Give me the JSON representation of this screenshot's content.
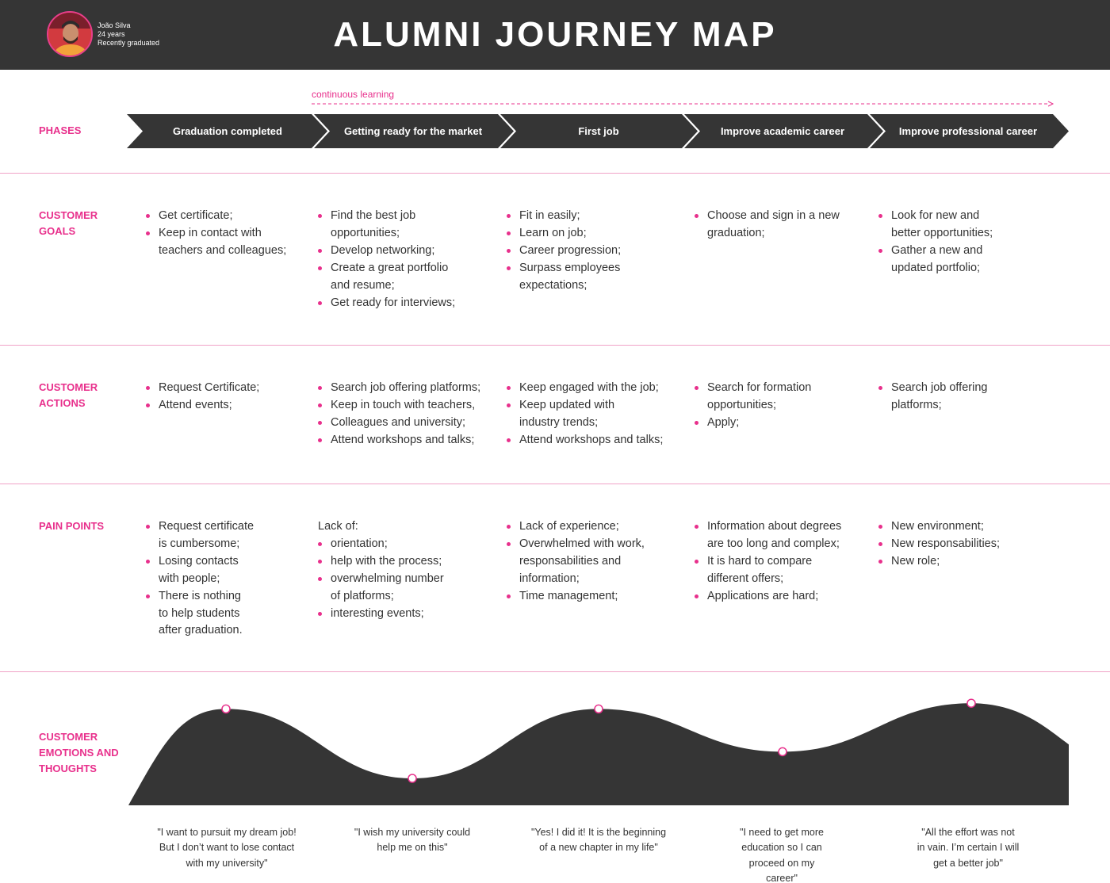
{
  "header": {
    "title": "ALUMNI JOURNEY MAP",
    "persona": {
      "name": "João Silva",
      "age": "24 years",
      "status": "Recently graduated"
    }
  },
  "colors": {
    "accent": "#e8308c",
    "dark": "#353535",
    "divider": "#f0a3c7"
  },
  "continuous_label": "continuous learning",
  "row_labels": {
    "phases": "PHASES",
    "goals": [
      "CUSTOMER",
      "GOALS"
    ],
    "actions": [
      "CUSTOMER",
      "ACTIONS"
    ],
    "pain": "PAIN POINTS",
    "emotions": [
      "CUSTOMER",
      "EMOTIONS AND",
      "THOUGHTS"
    ]
  },
  "phases": [
    "Graduation completed",
    "Getting ready for the market",
    "First job",
    "Improve academic career",
    "Improve professional career"
  ],
  "goals": [
    {
      "items": [
        [
          "Get certificate;"
        ],
        [
          "Keep in contact with",
          "teachers and colleagues;"
        ]
      ]
    },
    {
      "items": [
        [
          "Find the best job",
          "opportunities;"
        ],
        [
          "Develop networking;"
        ],
        [
          "Create a great portfolio",
          "and resume;"
        ],
        [
          "Get ready for interviews;"
        ]
      ]
    },
    {
      "items": [
        [
          "Fit in easily;"
        ],
        [
          "Learn on job;"
        ],
        [
          "Career progression;"
        ],
        [
          "Surpass employees",
          "expectations;"
        ]
      ]
    },
    {
      "items": [
        [
          "Choose and sign in a new",
          "graduation;"
        ]
      ]
    },
    {
      "items": [
        [
          "Look for new and",
          "better opportunities;"
        ],
        [
          "Gather a new and",
          "updated portfolio;"
        ]
      ]
    }
  ],
  "actions": [
    {
      "items": [
        [
          "Request Certificate;"
        ],
        [
          "Attend events;"
        ]
      ]
    },
    {
      "items": [
        [
          "Search job offering platforms;"
        ],
        [
          "Keep in touch with teachers,"
        ],
        [
          "Colleagues and university;"
        ],
        [
          "Attend workshops and talks;"
        ]
      ]
    },
    {
      "items": [
        [
          "Keep engaged with the job;"
        ],
        [
          "Keep updated with",
          "industry trends;"
        ],
        [
          "Attend workshops and talks;"
        ]
      ]
    },
    {
      "items": [
        [
          "Search for formation",
          "opportunities;"
        ],
        [
          "Apply;"
        ]
      ]
    },
    {
      "items": [
        [
          "Search job offering",
          "platforms;"
        ]
      ]
    }
  ],
  "pain_points": [
    {
      "items": [
        [
          "Request certificate",
          "is cumbersome;"
        ],
        [
          "Losing contacts",
          "with people;"
        ],
        [
          "There is nothing",
          "to help students",
          "after graduation."
        ]
      ]
    },
    {
      "intro": "Lack of:",
      "items": [
        [
          "orientation;"
        ],
        [
          "help with the process;"
        ],
        [
          "overwhelming number",
          "of platforms;"
        ],
        [
          "interesting events;"
        ]
      ]
    },
    {
      "items": [
        [
          "Lack of experience;"
        ],
        [
          "Overwhelmed with work,",
          "responsabilities and",
          "information;"
        ],
        [
          "Time management;"
        ]
      ]
    },
    {
      "items": [
        [
          "Information about degrees",
          "are too long and complex;"
        ],
        [
          "It is hard to compare",
          "different offers;"
        ],
        [
          "Applications are hard;"
        ]
      ]
    },
    {
      "items": [
        [
          "New environment;"
        ],
        [
          "New responsabilities;"
        ],
        [
          "New role;"
        ]
      ]
    }
  ],
  "emotion_levels": [
    0.88,
    0.15,
    0.88,
    0.43,
    0.94
  ],
  "quotes": [
    [
      "\"I want to pursuit my dream job!",
      "But I don’t want to lose contact",
      "with my university\""
    ],
    [
      "\"I wish my university could",
      "help me on this\""
    ],
    [
      "\"Yes! I did it! It is the beginning",
      "of a new chapter in my life\""
    ],
    [
      "\"I need to get more",
      "education so I can",
      "proceed on my",
      "career\""
    ],
    [
      "\"All the effort was not",
      "in vain. I’m certain I will",
      "get a better job\""
    ]
  ]
}
